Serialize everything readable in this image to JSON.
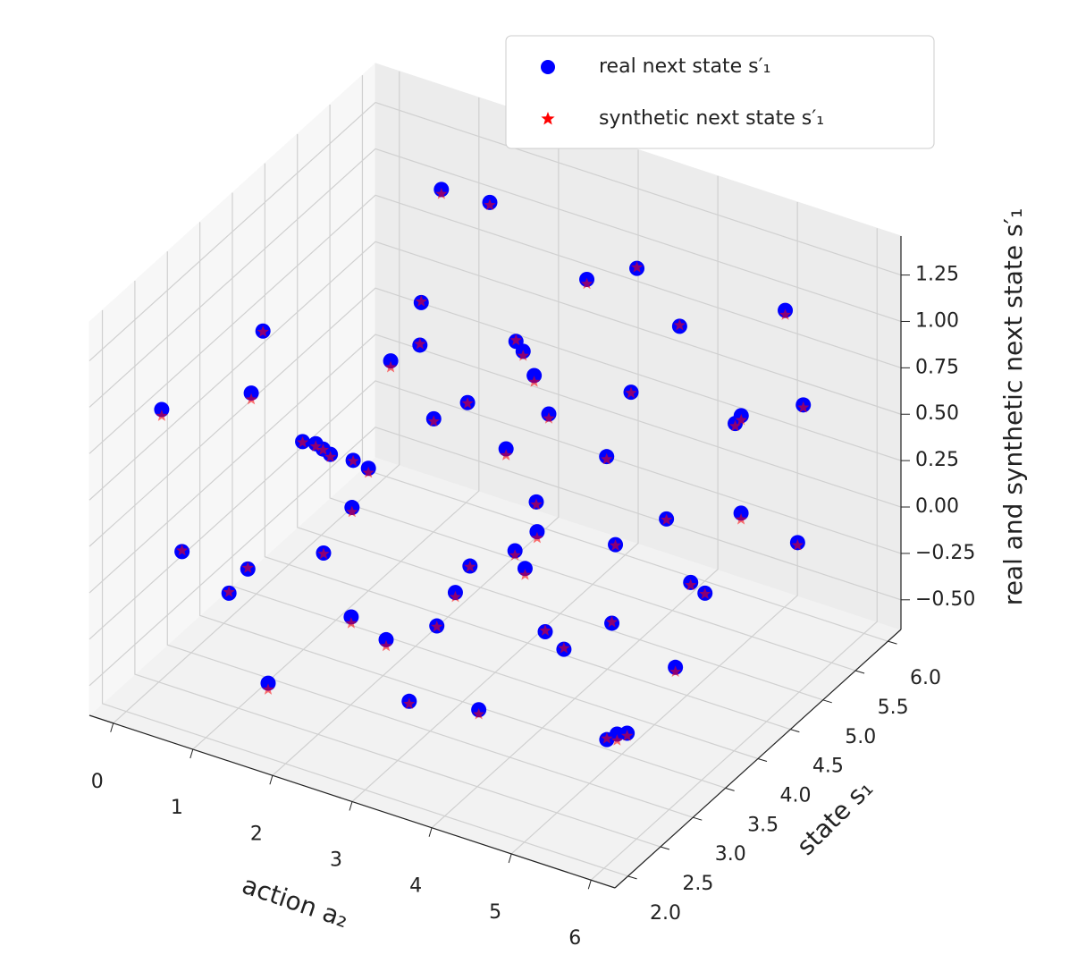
{
  "chart_data": {
    "type": "scatter3d",
    "xlabel": "action a₂",
    "ylabel": "state s₁",
    "zlabel": "real and synthetic next state s′₁",
    "xlim": [
      -0.3,
      6.3
    ],
    "ylim": [
      1.8,
      6.2
    ],
    "zlim": [
      -0.66,
      1.46
    ],
    "xticks": [
      0,
      1,
      2,
      3,
      4,
      5,
      6
    ],
    "yticks": [
      {
        "value": 2,
        "label": "2.0"
      },
      {
        "value": 2.5,
        "label": "2.5"
      },
      {
        "value": 3,
        "label": "3.0"
      },
      {
        "value": 3.5,
        "label": "3.5"
      },
      {
        "value": 4,
        "label": "4.0"
      },
      {
        "value": 4.5,
        "label": "4.5"
      },
      {
        "value": 5,
        "label": "5.0"
      },
      {
        "value": 5.5,
        "label": "5.5"
      },
      {
        "value": 6,
        "label": "6.0"
      }
    ],
    "zticks": [
      {
        "value": -0.5,
        "label": "−0.50"
      },
      {
        "value": -0.25,
        "label": "−0.25"
      },
      {
        "value": 0,
        "label": "0.00"
      },
      {
        "value": 0.25,
        "label": "0.25"
      },
      {
        "value": 0.5,
        "label": "0.50"
      },
      {
        "value": 0.75,
        "label": "0.75"
      },
      {
        "value": 1,
        "label": "1.00"
      },
      {
        "value": 1.25,
        "label": "1.25"
      }
    ],
    "grid": true,
    "legend": "upper right",
    "series": [
      {
        "name": "real next state s′₁",
        "color": "#0000ff",
        "marker": "circle",
        "x": [
          0.2,
          0.5,
          0.8,
          1.1,
          1.4,
          1.7,
          2.0,
          2.3,
          2.6,
          2.9,
          3.2,
          3.5,
          3.8,
          4.1,
          4.4,
          4.7,
          5.0,
          5.3,
          5.6,
          5.9,
          0.1,
          0.4,
          0.7,
          1.0,
          1.3,
          1.6,
          1.9,
          2.2,
          2.5,
          2.8,
          3.1,
          3.4,
          3.7,
          4.0,
          4.3,
          4.6,
          4.9,
          5.2,
          5.5,
          5.8,
          0.3,
          0.9,
          1.5,
          2.1,
          2.7,
          3.3,
          3.9,
          4.5,
          5.1,
          5.7,
          6.0,
          0.6,
          1.2,
          1.8,
          2.4,
          3.0,
          3.6,
          4.2,
          4.8,
          5.4
        ],
        "y": [
          2.3,
          4.1,
          2.6,
          5.5,
          3.2,
          2.1,
          4.8,
          3.7,
          5.9,
          2.8,
          4.4,
          3.0,
          5.2,
          2.4,
          4.0,
          5.7,
          3.4,
          2.9,
          4.6,
          5.1,
          3.8,
          5.0,
          2.0,
          4.5,
          6.0,
          3.5,
          2.7,
          5.3,
          4.0,
          3.3,
          2.2,
          5.6,
          4.2,
          3.6,
          6.1,
          2.5,
          4.9,
          3.1,
          5.4,
          2.6,
          5.7,
          3.0,
          4.7,
          2.9,
          5.0,
          3.8,
          2.0,
          5.0,
          4.2,
          3.7,
          2.2,
          4.3,
          2.4,
          5.9,
          2.2,
          4.6,
          5.9,
          3.3,
          2.1,
          5.8
        ],
        "z": [
          0.9,
          0.2,
          -0.1,
          1.2,
          0.6,
          -0.3,
          0.4,
          1.1,
          0.8,
          -0.45,
          0.0,
          0.3,
          1.25,
          -0.2,
          0.7,
          -0.1,
          0.5,
          -0.35,
          0.9,
          0.1,
          0.5,
          -0.2,
          0.3,
          0.0,
          1.0,
          -0.4,
          0.8,
          0.6,
          -0.3,
          0.9,
          0.1,
          0.4,
          -0.5,
          1.0,
          0.2,
          0.6,
          -0.25,
          0.2,
          1.2,
          -0.15,
          0.1,
          1.2,
          0.9,
          0.45,
          -0.1,
          0.65,
          0.35,
          1.1,
          -0.4,
          0.3,
          0.0,
          -0.45,
          0.15,
          0.3,
          1.0,
          0.75,
          -0.35,
          -0.05,
          0.85,
          0.55
        ]
      },
      {
        "name": "synthetic next state s′₁",
        "color": "#ff0000",
        "marker": "star",
        "x": [
          0.2,
          0.5,
          0.8,
          1.1,
          1.4,
          1.7,
          2.0,
          2.3,
          2.6,
          2.9,
          3.2,
          3.5,
          3.8,
          4.1,
          4.4,
          4.7,
          5.0,
          5.3,
          5.6,
          5.9,
          0.1,
          0.4,
          0.7,
          1.0,
          1.3,
          1.6,
          1.9,
          2.2,
          2.5,
          2.8,
          3.1,
          3.4,
          3.7,
          4.0,
          4.3,
          4.6,
          4.9,
          5.2,
          5.5,
          5.8,
          0.3,
          0.9,
          1.5,
          2.1,
          2.7,
          3.3,
          3.9,
          4.5,
          5.1,
          5.7,
          6.0,
          0.6,
          1.2,
          1.8,
          2.4,
          3.0,
          3.6,
          4.2,
          4.8,
          5.4
        ],
        "y": [
          2.3,
          4.1,
          2.6,
          5.5,
          3.2,
          2.1,
          4.8,
          3.7,
          5.9,
          2.8,
          4.4,
          3.0,
          5.2,
          2.4,
          4.0,
          5.7,
          3.4,
          2.9,
          4.6,
          5.1,
          3.8,
          5.0,
          2.0,
          4.5,
          6.0,
          3.5,
          2.7,
          5.3,
          4.0,
          3.3,
          2.2,
          5.6,
          4.2,
          3.6,
          6.1,
          2.5,
          4.9,
          3.1,
          5.4,
          2.6,
          5.7,
          3.0,
          4.7,
          2.9,
          5.0,
          3.8,
          2.0,
          5.0,
          4.2,
          3.7,
          2.2,
          4.3,
          2.4,
          5.9,
          2.2,
          4.6,
          5.9,
          3.3,
          2.1,
          5.8
        ],
        "z": [
          0.88,
          0.21,
          -0.08,
          1.19,
          0.6,
          -0.32,
          0.41,
          1.12,
          0.79,
          -0.45,
          -0.02,
          0.31,
          1.27,
          -0.21,
          0.7,
          -0.12,
          0.51,
          -0.33,
          0.89,
          0.1,
          0.48,
          -0.19,
          0.32,
          -0.01,
          1.0,
          -0.42,
          0.81,
          0.62,
          -0.31,
          0.9,
          0.08,
          0.41,
          -0.48,
          0.99,
          0.2,
          0.58,
          -0.24,
          0.22,
          1.19,
          -0.15,
          0.08,
          1.21,
          0.92,
          0.44,
          -0.1,
          0.63,
          0.36,
          1.12,
          -0.41,
          0.3,
          -0.02,
          -0.44,
          0.17,
          0.29,
          1.0,
          0.73,
          -0.34,
          -0.03,
          0.84,
          0.55
        ]
      }
    ]
  }
}
